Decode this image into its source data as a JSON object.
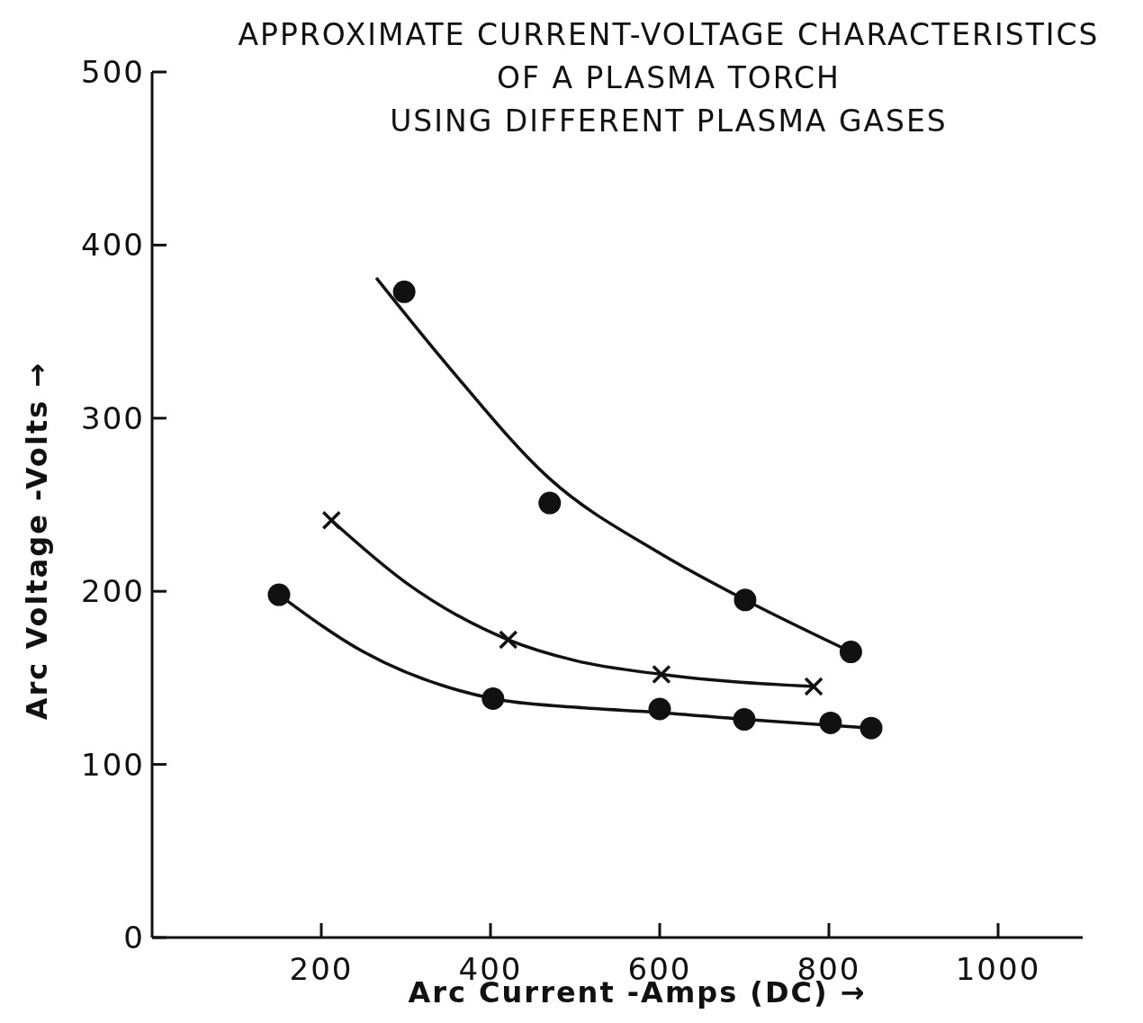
{
  "chart_data": {
    "type": "scatter",
    "title": "APPROXIMATE CURRENT-VOLTAGE CHARACTERISTICS\nOF A PLASMA TORCH\nUSING DIFFERENT PLASMA GASES",
    "xlabel": "Arc Current -Amps (DC) →",
    "ylabel": "Arc Voltage -Volts →",
    "xlim": [
      0,
      1100
    ],
    "xticks": [
      200,
      400,
      600,
      800,
      1000
    ],
    "ylim": [
      0,
      500
    ],
    "yticks": [
      0,
      100,
      200,
      300,
      400,
      500
    ],
    "grid": false,
    "series": [
      {
        "color": "#111111",
        "marker": "circle",
        "x": [
          298,
          470,
          701,
          826
        ],
        "values": [
          373,
          251,
          195,
          165
        ]
      },
      {
        "color": "#111111",
        "marker": "cross",
        "x": [
          212,
          421,
          602,
          782
        ],
        "values": [
          241,
          172,
          152,
          145
        ]
      },
      {
        "color": "#111111",
        "marker": "circle",
        "x": [
          150,
          403,
          600,
          700,
          802,
          850
        ],
        "values": [
          198,
          138,
          132,
          126,
          124,
          121
        ]
      },
      {
        "type": "line",
        "color": "#111111",
        "marker": "none",
        "x": [
          265,
          350,
          470,
          600,
          701,
          826
        ],
        "values": [
          381,
          330,
          265,
          222,
          195,
          165
        ]
      },
      {
        "type": "line",
        "color": "#111111",
        "marker": "none",
        "x": [
          212,
          300,
          421,
          500,
          602,
          782
        ],
        "values": [
          241,
          205,
          172,
          160,
          152,
          145
        ]
      },
      {
        "type": "line",
        "color": "#111111",
        "marker": "none",
        "x": [
          150,
          250,
          403,
          500,
          600,
          700,
          850
        ],
        "values": [
          198,
          165,
          138,
          133,
          130,
          126,
          121
        ]
      }
    ]
  }
}
